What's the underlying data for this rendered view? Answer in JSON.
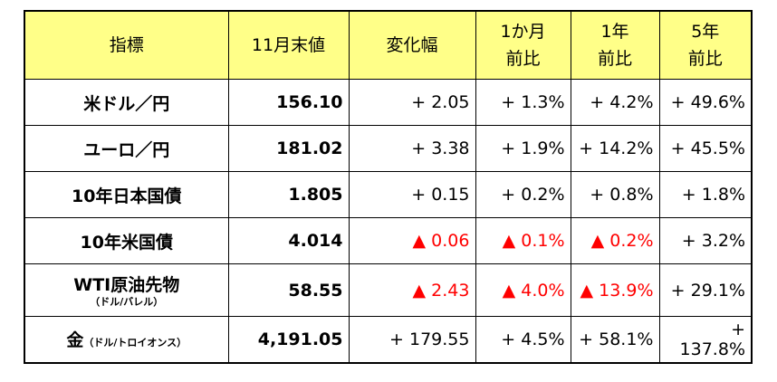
{
  "table": {
    "header": [
      [
        "指標"
      ],
      [
        "11月末値"
      ],
      [
        "変化幅"
      ],
      [
        "1か月",
        "前比"
      ],
      [
        "1年",
        "前比"
      ],
      [
        "5年",
        "前比"
      ]
    ],
    "negative_color": "#ff0000",
    "header_color": "#ffff88",
    "rows": [
      {
        "name": "米ドル／円",
        "value": "156.10",
        "changes": [
          {
            "text": "+ 2.05",
            "negative": false
          },
          {
            "text": "+ 1.3%",
            "negative": false
          },
          {
            "text": "+ 4.2%",
            "negative": false
          },
          {
            "text": "+ 49.6%",
            "negative": false
          }
        ]
      },
      {
        "name": "ユーロ／円",
        "value": "181.02",
        "changes": [
          {
            "text": "+ 3.38",
            "negative": false
          },
          {
            "text": "+ 1.9%",
            "negative": false
          },
          {
            "text": "+ 14.2%",
            "negative": false
          },
          {
            "text": "+ 45.5%",
            "negative": false
          }
        ]
      },
      {
        "name": "10年日本国債",
        "value": "1.805",
        "changes": [
          {
            "text": "+ 0.15",
            "negative": false
          },
          {
            "text": "+ 0.2%",
            "negative": false
          },
          {
            "text": "+ 0.8%",
            "negative": false
          },
          {
            "text": "+ 1.8%",
            "negative": false
          }
        ]
      },
      {
        "name": "10年米国債",
        "value": "4.014",
        "changes": [
          {
            "text": "▲ 0.06",
            "negative": true
          },
          {
            "text": "▲ 0.1%",
            "negative": true
          },
          {
            "text": "▲ 0.2%",
            "negative": true
          },
          {
            "text": "+ 3.2%",
            "negative": false
          }
        ]
      },
      {
        "name": "WTI原油先物",
        "unit": "（ドル/バレル）",
        "unit_inline": false,
        "value": "58.55",
        "changes": [
          {
            "text": "▲ 2.43",
            "negative": true
          },
          {
            "text": "▲ 4.0%",
            "negative": true
          },
          {
            "text": "▲ 13.9%",
            "negative": true
          },
          {
            "text": "+ 29.1%",
            "negative": false
          }
        ]
      },
      {
        "name": "金",
        "unit": "（ドル/トロイオンス）",
        "unit_inline": true,
        "value": "4,191.05",
        "changes": [
          {
            "text": "+ 179.55",
            "negative": false
          },
          {
            "text": "+ 4.5%",
            "negative": false
          },
          {
            "text": "+ 58.1%",
            "negative": false
          },
          {
            "text": "+ 137.8%",
            "negative": false
          }
        ]
      }
    ]
  }
}
